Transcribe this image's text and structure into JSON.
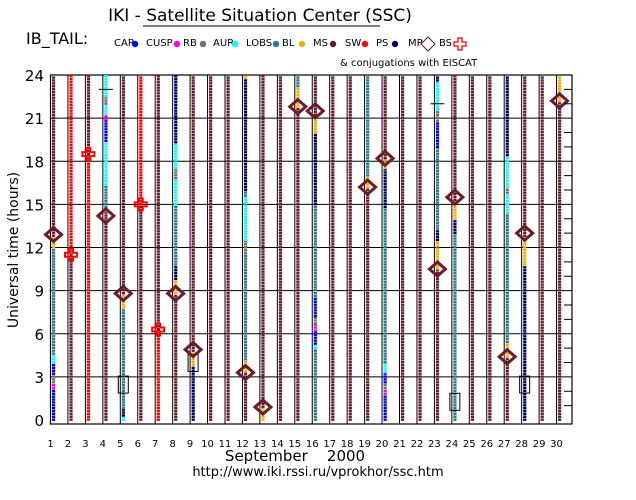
{
  "chart_data": {
    "type": "scatter",
    "title": "IKI - Satellite Situation Center (SSC)",
    "satellite": "IB_TAIL:",
    "xlabel": "September    2000",
    "ylabel": "Universal time (hours)",
    "footer": "http://www.iki.rssi.ru/vprokhor/ssc.htm",
    "legend_note": "& conjugations with EISCAT",
    "ylim": [
      0,
      24
    ],
    "yticks": [
      0,
      3,
      6,
      9,
      12,
      15,
      18,
      21,
      24
    ],
    "days": [
      1,
      2,
      3,
      4,
      5,
      6,
      7,
      8,
      9,
      10,
      11,
      12,
      13,
      14,
      15,
      16,
      17,
      18,
      19,
      20,
      21,
      22,
      23,
      24,
      25,
      26,
      27,
      28,
      29,
      30
    ],
    "legend": [
      {
        "label": "CAP",
        "color": "#0000ff",
        "marker": "dot"
      },
      {
        "label": "CUSP",
        "color": "#ff00ff",
        "marker": "dot"
      },
      {
        "label": "RB",
        "color": "#707070",
        "marker": "dot"
      },
      {
        "label": "AUR",
        "color": "#00ffff",
        "marker": "dot"
      },
      {
        "label": "LOBS",
        "color": "#2b7b88",
        "marker": "dot"
      },
      {
        "label": "BL",
        "color": "#ffa800",
        "marker": "dot"
      },
      {
        "label": "MS",
        "color": "#6b1c2c",
        "marker": "dot"
      },
      {
        "label": "SW",
        "color": "#ff0000",
        "marker": "dot"
      },
      {
        "label": "PS",
        "color": "#00006b",
        "marker": "dot"
      },
      {
        "label": "MP",
        "color": "#6b1c2c",
        "marker": "diamond"
      },
      {
        "label": "BS",
        "color": "#ff0000",
        "marker": "cross"
      }
    ],
    "series": [
      {
        "day": 1,
        "segments": [
          [
            0,
            2.2,
            "CAP"
          ],
          [
            2.2,
            2.6,
            "CUSP"
          ],
          [
            2.6,
            3.2,
            "RB"
          ],
          [
            3.2,
            4,
            "CAP"
          ],
          [
            4,
            4.6,
            "AUR"
          ],
          [
            4.6,
            12,
            "LOBS"
          ],
          [
            12,
            12.8,
            "BL"
          ],
          [
            12.8,
            24,
            "MS"
          ]
        ],
        "mp": [
          12.9
        ],
        "bs": []
      },
      {
        "day": 2,
        "segments": [
          [
            0,
            11.5,
            "MS"
          ],
          [
            11.5,
            24,
            "SW"
          ]
        ],
        "mp": [],
        "bs": [
          11.5
        ]
      },
      {
        "day": 3,
        "segments": [
          [
            0,
            18.5,
            "SW"
          ],
          [
            18.5,
            24,
            "MS"
          ]
        ],
        "mp": [],
        "bs": [
          18.5
        ]
      },
      {
        "day": 4,
        "segments": [
          [
            0,
            14.5,
            "MS"
          ],
          [
            14.5,
            14.8,
            "BL"
          ],
          [
            14.8,
            16.4,
            "LOBS"
          ],
          [
            16.4,
            19.4,
            "AUR"
          ],
          [
            19.4,
            20.9,
            "CAP"
          ],
          [
            20.9,
            21.3,
            "CUSP"
          ],
          [
            21.3,
            22,
            "AUR"
          ],
          [
            22,
            22.5,
            "RB"
          ],
          [
            22.5,
            24,
            "AUR"
          ]
        ],
        "mp": [
          14.2
        ],
        "bs": [],
        "marks": [
          23
        ]
      },
      {
        "day": 5,
        "segments": [
          [
            0,
            0.3,
            "AUR"
          ],
          [
            0.3,
            0.8,
            "PS"
          ],
          [
            0.8,
            7.8,
            "LOBS"
          ],
          [
            7.8,
            8.8,
            "BL"
          ],
          [
            8.8,
            24,
            "MS"
          ]
        ],
        "mp": [
          8.8
        ],
        "bs": [],
        "eiscat": [
          2.5
        ]
      },
      {
        "day": 6,
        "segments": [
          [
            0,
            15,
            "MS"
          ],
          [
            15,
            24,
            "SW"
          ]
        ],
        "mp": [],
        "bs": [
          15
        ]
      },
      {
        "day": 7,
        "segments": [
          [
            0,
            6.3,
            "SW"
          ],
          [
            6.3,
            24,
            "MS"
          ]
        ],
        "mp": [],
        "bs": [
          6.3
        ]
      },
      {
        "day": 8,
        "segments": [
          [
            0,
            8.8,
            "MS"
          ],
          [
            8.8,
            9.8,
            "BL"
          ],
          [
            9.8,
            10.8,
            "PS"
          ],
          [
            10.8,
            15,
            "LOBS"
          ],
          [
            15,
            16.8,
            "AUR"
          ],
          [
            16.8,
            17.5,
            "RB"
          ],
          [
            17.5,
            19.3,
            "AUR"
          ],
          [
            19.3,
            24,
            "PS"
          ]
        ],
        "mp": [
          8.8
        ],
        "bs": []
      },
      {
        "day": 9,
        "segments": [
          [
            0,
            3.8,
            "PS"
          ],
          [
            3.8,
            4.8,
            "BL"
          ],
          [
            4.8,
            24,
            "MS"
          ]
        ],
        "mp": [
          4.9
        ],
        "bs": [],
        "eiscat": [
          4
        ]
      },
      {
        "day": 10,
        "segments": [
          [
            0,
            24,
            "MS"
          ]
        ],
        "mp": [],
        "bs": []
      },
      {
        "day": 11,
        "segments": [
          [
            0,
            24,
            "MS"
          ]
        ],
        "mp": [],
        "bs": []
      },
      {
        "day": 12,
        "segments": [
          [
            0,
            3.4,
            "MS"
          ],
          [
            3.4,
            4.2,
            "BL"
          ],
          [
            4.2,
            11.6,
            "LOBS"
          ],
          [
            11.6,
            12.5,
            "RB"
          ],
          [
            12.5,
            15.6,
            "AUR"
          ],
          [
            15.6,
            16,
            "LOBS"
          ],
          [
            16,
            23.8,
            "PS"
          ],
          [
            23.8,
            24,
            "BL"
          ]
        ],
        "mp": [
          3.3
        ],
        "bs": []
      },
      {
        "day": 13,
        "segments": [
          [
            0,
            0.9,
            "BL"
          ],
          [
            0.9,
            24,
            "MS"
          ]
        ],
        "mp": [
          0.9
        ],
        "bs": []
      },
      {
        "day": 14,
        "segments": [
          [
            0,
            24,
            "MS"
          ]
        ],
        "mp": [],
        "bs": []
      },
      {
        "day": 15,
        "segments": [
          [
            0,
            21.8,
            "MS"
          ],
          [
            21.8,
            23.2,
            "BL"
          ],
          [
            23.2,
            24,
            "LOBS"
          ]
        ],
        "mp": [
          21.8
        ],
        "bs": []
      },
      {
        "day": 16,
        "segments": [
          [
            0,
            5,
            "LOBS"
          ],
          [
            5,
            5.3,
            "AUR"
          ],
          [
            5.3,
            6.2,
            "CAP"
          ],
          [
            6.2,
            6.7,
            "CUSP"
          ],
          [
            6.7,
            7.2,
            "RB"
          ],
          [
            7.2,
            8.6,
            "CAP"
          ],
          [
            8.6,
            15,
            "LOBS"
          ],
          [
            15,
            20,
            "PS"
          ],
          [
            20,
            21.2,
            "BL"
          ],
          [
            21.2,
            24,
            "MS"
          ]
        ],
        "mp": [
          21.5
        ],
        "bs": []
      },
      {
        "day": 17,
        "segments": [
          [
            0,
            24,
            "MS"
          ]
        ],
        "mp": [],
        "bs": []
      },
      {
        "day": 18,
        "segments": [
          [
            0,
            24,
            "MS"
          ]
        ],
        "mp": [],
        "bs": []
      },
      {
        "day": 19,
        "segments": [
          [
            0,
            16.2,
            "MS"
          ],
          [
            16.2,
            17,
            "BL"
          ],
          [
            17,
            24,
            "LOBS"
          ]
        ],
        "mp": [
          16.2
        ],
        "bs": []
      },
      {
        "day": 20,
        "segments": [
          [
            0,
            1.8,
            "CAP"
          ],
          [
            1.8,
            2.2,
            "CUSP"
          ],
          [
            2.2,
            2.6,
            "RB"
          ],
          [
            2.6,
            3.3,
            "CAP"
          ],
          [
            3.3,
            4,
            "AUR"
          ],
          [
            4,
            14.8,
            "LOBS"
          ],
          [
            14.8,
            17.5,
            "PS"
          ],
          [
            17.5,
            18.2,
            "BL"
          ],
          [
            18.2,
            24,
            "MS"
          ]
        ],
        "mp": [
          18.2
        ],
        "bs": []
      },
      {
        "day": 21,
        "segments": [
          [
            0,
            24,
            "MS"
          ]
        ],
        "mp": [],
        "bs": []
      },
      {
        "day": 22,
        "segments": [
          [
            0,
            24,
            "MS"
          ]
        ],
        "mp": [],
        "bs": []
      },
      {
        "day": 23,
        "segments": [
          [
            0,
            10.5,
            "MS"
          ],
          [
            10.5,
            12.5,
            "BL"
          ],
          [
            12.5,
            13.3,
            "PS"
          ],
          [
            13.3,
            19,
            "LOBS"
          ],
          [
            19,
            20.8,
            "CAP"
          ],
          [
            20.8,
            21.6,
            "RB"
          ],
          [
            21.6,
            23.6,
            "AUR"
          ],
          [
            23.6,
            24,
            "PS"
          ]
        ],
        "mp": [
          10.5
        ],
        "bs": [],
        "marks": [
          22
        ]
      },
      {
        "day": 24,
        "segments": [
          [
            0,
            13,
            "LOBS"
          ],
          [
            13,
            14,
            "PS"
          ],
          [
            14,
            15.3,
            "BL"
          ],
          [
            15.3,
            24,
            "MS"
          ]
        ],
        "mp": [
          15.5
        ],
        "bs": [],
        "eiscat": [
          1.3
        ]
      },
      {
        "day": 25,
        "segments": [
          [
            0,
            24,
            "MS"
          ]
        ],
        "mp": [],
        "bs": []
      },
      {
        "day": 26,
        "segments": [
          [
            0,
            24,
            "MS"
          ]
        ],
        "mp": [],
        "bs": []
      },
      {
        "day": 27,
        "segments": [
          [
            0,
            4.4,
            "MS"
          ],
          [
            4.4,
            5.4,
            "BL"
          ],
          [
            5.4,
            14.4,
            "LOBS"
          ],
          [
            14.4,
            15.8,
            "AUR"
          ],
          [
            15.8,
            16.2,
            "RB"
          ],
          [
            16.2,
            18.4,
            "AUR"
          ],
          [
            18.4,
            24,
            "PS"
          ]
        ],
        "mp": [
          4.4
        ],
        "bs": []
      },
      {
        "day": 28,
        "segments": [
          [
            0,
            10.8,
            "PS"
          ],
          [
            10.8,
            12.8,
            "BL"
          ],
          [
            12.8,
            24,
            "MS"
          ]
        ],
        "mp": [
          13
        ],
        "bs": [],
        "eiscat": [
          2.5
        ]
      },
      {
        "day": 29,
        "segments": [
          [
            0,
            24,
            "MS"
          ]
        ],
        "mp": [],
        "bs": []
      },
      {
        "day": 30,
        "segments": [
          [
            0,
            22.2,
            "MS"
          ],
          [
            22.2,
            24,
            "BL"
          ]
        ],
        "mp": [
          22.2
        ],
        "bs": []
      }
    ]
  }
}
